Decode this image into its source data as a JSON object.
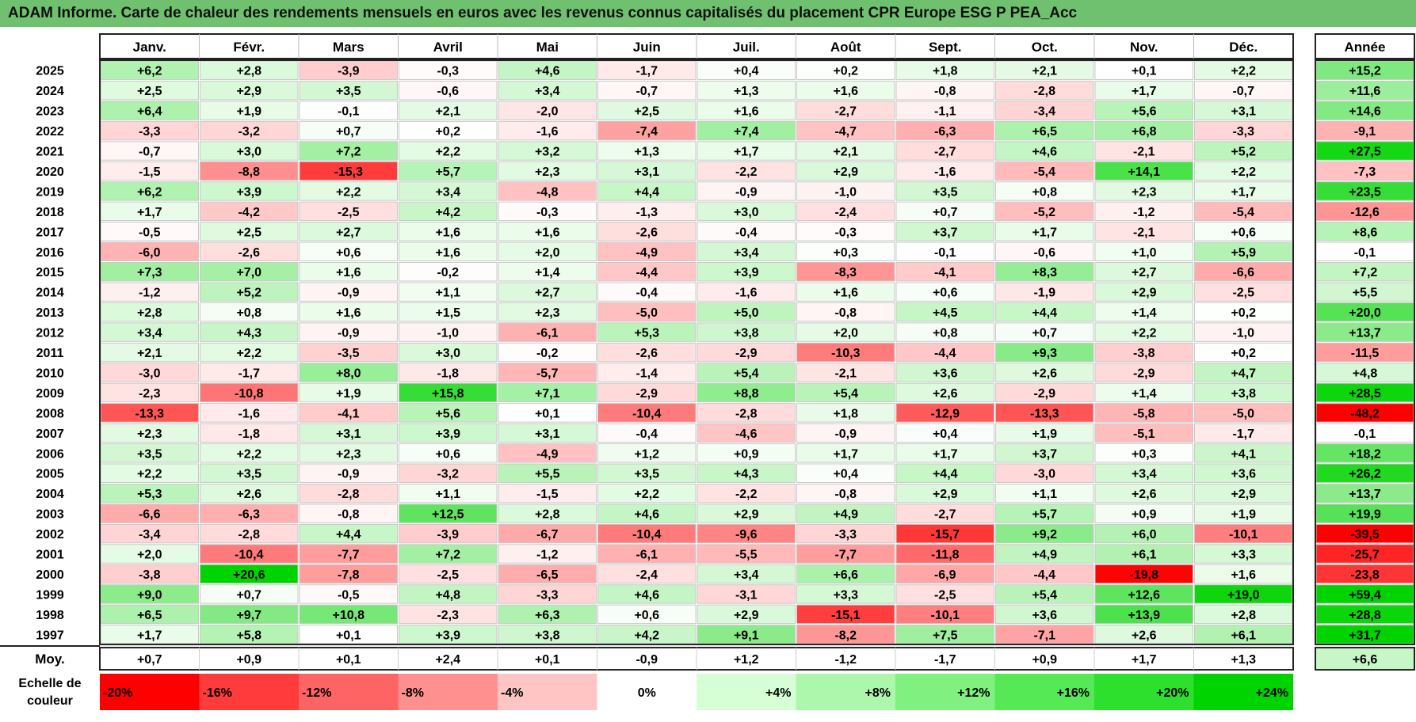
{
  "title": "ADAM Informe. Carte de chaleur des rendements mensuels en euros avec les revenus connus capitalisés du placement CPR Europe ESG P PEA_Acc",
  "chart_data": {
    "type": "heatmap",
    "columns": [
      "Janv.",
      "Févr.",
      "Mars",
      "Avril",
      "Mai",
      "Juin",
      "Juil.",
      "Août",
      "Sept.",
      "Oct.",
      "Nov.",
      "Déc."
    ],
    "year_column": "Année",
    "rows": [
      {
        "year": "2025",
        "values": [
          "+6,2",
          "+2,8",
          "-3,9",
          "-0,3",
          "+4,6",
          "-1,7",
          "+0,4",
          "+0,2",
          "+1,8",
          "+2,1",
          "+0,1",
          "+2,2"
        ],
        "annual": "+15,2"
      },
      {
        "year": "2024",
        "values": [
          "+2,5",
          "+2,9",
          "+3,5",
          "-0,6",
          "+3,4",
          "-0,7",
          "+1,3",
          "+1,6",
          "-0,8",
          "-2,8",
          "+1,7",
          "-0,7"
        ],
        "annual": "+11,6"
      },
      {
        "year": "2023",
        "values": [
          "+6,4",
          "+1,9",
          "-0,1",
          "+2,1",
          "-2,0",
          "+2,5",
          "+1,6",
          "-2,7",
          "-1,1",
          "-3,4",
          "+5,6",
          "+3,1"
        ],
        "annual": "+14,6"
      },
      {
        "year": "2022",
        "values": [
          "-3,3",
          "-3,2",
          "+0,7",
          "+0,2",
          "-1,6",
          "-7,4",
          "+7,4",
          "-4,7",
          "-6,3",
          "+6,5",
          "+6,8",
          "-3,3"
        ],
        "annual": "-9,1"
      },
      {
        "year": "2021",
        "values": [
          "-0,7",
          "+3,0",
          "+7,2",
          "+2,2",
          "+3,2",
          "+1,3",
          "+1,7",
          "+2,1",
          "-2,7",
          "+4,6",
          "-2,1",
          "+5,2"
        ],
        "annual": "+27,5"
      },
      {
        "year": "2020",
        "values": [
          "-1,5",
          "-8,8",
          "-15,3",
          "+5,7",
          "+2,3",
          "+3,1",
          "-2,2",
          "+2,9",
          "-1,6",
          "-5,4",
          "+14,1",
          "+2,2"
        ],
        "annual": "-7,3"
      },
      {
        "year": "2019",
        "values": [
          "+6,2",
          "+3,9",
          "+2,2",
          "+3,4",
          "-4,8",
          "+4,4",
          "-0,9",
          "-1,0",
          "+3,5",
          "+0,8",
          "+2,3",
          "+1,7"
        ],
        "annual": "+23,5"
      },
      {
        "year": "2018",
        "values": [
          "+1,7",
          "-4,2",
          "-2,5",
          "+4,2",
          "-0,3",
          "-1,3",
          "+3,0",
          "-2,4",
          "+0,7",
          "-5,2",
          "-1,2",
          "-5,4"
        ],
        "annual": "-12,6"
      },
      {
        "year": "2017",
        "values": [
          "-0,5",
          "+2,5",
          "+2,7",
          "+1,6",
          "+1,6",
          "-2,6",
          "-0,4",
          "-0,3",
          "+3,7",
          "+1,7",
          "-2,1",
          "+0,6"
        ],
        "annual": "+8,6"
      },
      {
        "year": "2016",
        "values": [
          "-6,0",
          "-2,6",
          "+0,6",
          "+1,6",
          "+2,0",
          "-4,9",
          "+3,4",
          "+0,3",
          "-0,1",
          "-0,6",
          "+1,0",
          "+5,9"
        ],
        "annual": "-0,1"
      },
      {
        "year": "2015",
        "values": [
          "+7,3",
          "+7,0",
          "+1,6",
          "-0,2",
          "+1,4",
          "-4,4",
          "+3,9",
          "-8,3",
          "-4,1",
          "+8,3",
          "+2,7",
          "-6,6"
        ],
        "annual": "+7,2"
      },
      {
        "year": "2014",
        "values": [
          "-1,2",
          "+5,2",
          "-0,9",
          "+1,1",
          "+2,7",
          "-0,4",
          "-1,6",
          "+1,6",
          "+0,6",
          "-1,9",
          "+2,9",
          "-2,5"
        ],
        "annual": "+5,5"
      },
      {
        "year": "2013",
        "values": [
          "+2,8",
          "+0,8",
          "+1,6",
          "+1,5",
          "+2,3",
          "-5,0",
          "+5,0",
          "-0,8",
          "+4,5",
          "+4,4",
          "+1,4",
          "+0,2"
        ],
        "annual": "+20,0"
      },
      {
        "year": "2012",
        "values": [
          "+3,4",
          "+4,3",
          "-0,9",
          "-1,0",
          "-6,1",
          "+5,3",
          "+3,8",
          "+2,0",
          "+0,8",
          "+0,7",
          "+2,2",
          "-1,0"
        ],
        "annual": "+13,7"
      },
      {
        "year": "2011",
        "values": [
          "+2,1",
          "+2,2",
          "-3,5",
          "+3,0",
          "-0,2",
          "-2,6",
          "-2,9",
          "-10,3",
          "-4,4",
          "+9,3",
          "-3,8",
          "+0,2"
        ],
        "annual": "-11,5"
      },
      {
        "year": "2010",
        "values": [
          "-3,0",
          "-1,7",
          "+8,0",
          "-1,8",
          "-5,7",
          "-1,4",
          "+5,4",
          "-2,1",
          "+3,6",
          "+2,6",
          "-2,9",
          "+4,7"
        ],
        "annual": "+4,8"
      },
      {
        "year": "2009",
        "values": [
          "-2,3",
          "-10,8",
          "+1,9",
          "+15,8",
          "+7,1",
          "-2,9",
          "+8,8",
          "+5,4",
          "+2,6",
          "-2,9",
          "+1,4",
          "+3,8"
        ],
        "annual": "+28,5"
      },
      {
        "year": "2008",
        "values": [
          "-13,3",
          "-1,6",
          "-4,1",
          "+5,6",
          "+0,1",
          "-10,4",
          "-2,8",
          "+1,8",
          "-12,9",
          "-13,3",
          "-5,8",
          "-5,0"
        ],
        "annual": "-48,2"
      },
      {
        "year": "2007",
        "values": [
          "+2,3",
          "-1,8",
          "+3,1",
          "+3,9",
          "+3,1",
          "-0,4",
          "-4,6",
          "-0,9",
          "+0,4",
          "+1,9",
          "-5,1",
          "-1,7"
        ],
        "annual": "-0,1"
      },
      {
        "year": "2006",
        "values": [
          "+3,5",
          "+2,2",
          "+2,3",
          "+0,6",
          "-4,9",
          "+1,2",
          "+0,9",
          "+1,7",
          "+1,7",
          "+3,7",
          "+0,3",
          "+4,1"
        ],
        "annual": "+18,2"
      },
      {
        "year": "2005",
        "values": [
          "+2,2",
          "+3,5",
          "-0,9",
          "-3,2",
          "+5,5",
          "+3,5",
          "+4,3",
          "+0,4",
          "+4,4",
          "-3,0",
          "+3,4",
          "+3,6"
        ],
        "annual": "+26,2"
      },
      {
        "year": "2004",
        "values": [
          "+5,3",
          "+2,6",
          "-2,8",
          "+1,1",
          "-1,5",
          "+2,2",
          "-2,2",
          "-0,8",
          "+2,9",
          "+1,1",
          "+2,6",
          "+2,9"
        ],
        "annual": "+13,7"
      },
      {
        "year": "2003",
        "values": [
          "-6,6",
          "-6,3",
          "-0,8",
          "+12,5",
          "+2,8",
          "+4,6",
          "+2,9",
          "+4,9",
          "-2,7",
          "+5,7",
          "+0,9",
          "+1,9"
        ],
        "annual": "+19,9"
      },
      {
        "year": "2002",
        "values": [
          "-3,4",
          "-2,8",
          "+4,4",
          "-3,9",
          "-6,7",
          "-10,4",
          "-9,6",
          "-3,3",
          "-15,7",
          "+9,2",
          "+6,0",
          "-10,1"
        ],
        "annual": "-39,5"
      },
      {
        "year": "2001",
        "values": [
          "+2,0",
          "-10,4",
          "-7,7",
          "+7,2",
          "-1,2",
          "-6,1",
          "-5,5",
          "-7,7",
          "-11,8",
          "+4,9",
          "+6,1",
          "+3,3"
        ],
        "annual": "-25,7"
      },
      {
        "year": "2000",
        "values": [
          "-3,8",
          "+20,6",
          "-7,8",
          "-2,5",
          "-6,5",
          "-2,4",
          "+3,4",
          "+6,6",
          "-6,9",
          "-4,4",
          "-19,8",
          "+1,6"
        ],
        "annual": "-23,8"
      },
      {
        "year": "1999",
        "values": [
          "+9,0",
          "+0,7",
          "-0,5",
          "+4,8",
          "-3,3",
          "+4,6",
          "-3,1",
          "+3,3",
          "-2,5",
          "+5,4",
          "+12,6",
          "+19,0"
        ],
        "annual": "+59,4"
      },
      {
        "year": "1998",
        "values": [
          "+6,5",
          "+9,7",
          "+10,8",
          "-2,3",
          "+6,3",
          "+0,6",
          "+2,9",
          "-15,1",
          "-10,1",
          "+3,6",
          "+13,9",
          "+2,8"
        ],
        "annual": "+28,8"
      },
      {
        "year": "1997",
        "values": [
          "+1,7",
          "+5,8",
          "+0,1",
          "+3,9",
          "+3,8",
          "+4,2",
          "+9,1",
          "-8,2",
          "+7,5",
          "-7,1",
          "+2,6",
          "+6,1"
        ],
        "annual": "+31,7"
      }
    ],
    "average_row": {
      "label": "Moy.",
      "values": [
        "+0,7",
        "+0,9",
        "+0,1",
        "+2,4",
        "+0,1",
        "-0,9",
        "+1,2",
        "-1,2",
        "-1,7",
        "+0,9",
        "+1,7",
        "+1,3"
      ],
      "annual": "+6,6"
    },
    "scale": {
      "label_line1": "Echelle de",
      "label_line2": "couleur",
      "steps": [
        {
          "label": "-20%",
          "value": -20,
          "color": "#ff0000"
        },
        {
          "label": "-16%",
          "value": -16,
          "color": "#ff3b3b"
        },
        {
          "label": "-12%",
          "value": -12,
          "color": "#ff6464"
        },
        {
          "label": "-8%",
          "value": -8,
          "color": "#ff9090"
        },
        {
          "label": "-4%",
          "value": -4,
          "color": "#ffc4c4"
        },
        {
          "label": "0%",
          "value": 0,
          "color": "#ffffff"
        },
        {
          "label": "+4%",
          "value": 4,
          "color": "#d6ffd6"
        },
        {
          "label": "+8%",
          "value": 8,
          "color": "#acf7ac"
        },
        {
          "label": "+12%",
          "value": 12,
          "color": "#80f080"
        },
        {
          "label": "+16%",
          "value": 16,
          "color": "#55ea55"
        },
        {
          "label": "+20%",
          "value": 20,
          "color": "#2de02d"
        },
        {
          "label": "+24%",
          "value": 24,
          "color": "#00d400"
        }
      ]
    },
    "colors": {
      "negative_max": "#ff0000",
      "positive_max": "#00d400",
      "neutral": "#ffffff",
      "title_bar": "#6fc06f",
      "border": "#222222"
    }
  }
}
